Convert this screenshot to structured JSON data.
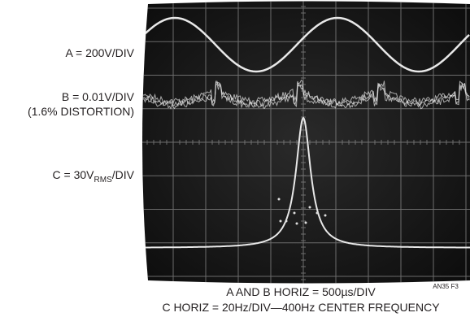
{
  "labels": {
    "a": "A = 200V/DIV",
    "b": "B = 0.01V/DIV",
    "b_note": "(1.6% DISTORTION)",
    "c": {
      "main": "C = 30V",
      "sub": "RMS",
      "unit": "/DIV"
    }
  },
  "caption": {
    "line1": "A AND B HORIZ = 500µs/DIV",
    "line2": "C HORIZ = 20Hz/DIV—400Hz CENTER FREQUENCY"
  },
  "figure_id": "AN35 F3"
}
